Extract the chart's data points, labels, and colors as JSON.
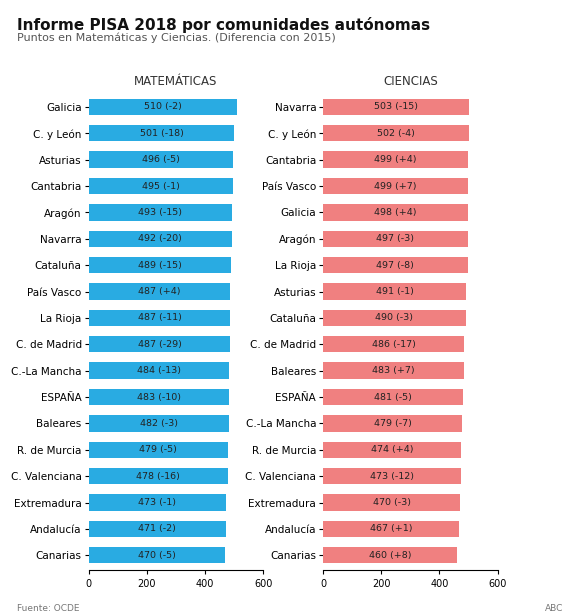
{
  "title": "Informe PISA 2018 por comunidades autónomas",
  "subtitle": "Puntos en Matemáticas y Ciencias. (Diferencia con 2015)",
  "source": "Fuente: OCDE",
  "watermark": "ABC",
  "math_label": "MATEMÁTICAS",
  "sci_label": "CIENCIAS",
  "math_data": [
    {
      "region": "Galicia",
      "value": 510,
      "diff": -2
    },
    {
      "region": "C. y León",
      "value": 501,
      "diff": -18
    },
    {
      "region": "Asturias",
      "value": 496,
      "diff": -5
    },
    {
      "region": "Cantabria",
      "value": 495,
      "diff": -1
    },
    {
      "region": "Aragón",
      "value": 493,
      "diff": -15
    },
    {
      "region": "Navarra",
      "value": 492,
      "diff": -20
    },
    {
      "region": "Cataluña",
      "value": 489,
      "diff": -15
    },
    {
      "region": "País Vasco",
      "value": 487,
      "diff": 4
    },
    {
      "region": "La Rioja",
      "value": 487,
      "diff": -11
    },
    {
      "region": "C. de Madrid",
      "value": 487,
      "diff": -29
    },
    {
      "region": "C.-La Mancha",
      "value": 484,
      "diff": -13
    },
    {
      "region": "ESPAÑA",
      "value": 483,
      "diff": -10
    },
    {
      "region": "Baleares",
      "value": 482,
      "diff": -3
    },
    {
      "region": "R. de Murcia",
      "value": 479,
      "diff": -5
    },
    {
      "region": "C. Valenciana",
      "value": 478,
      "diff": -16
    },
    {
      "region": "Extremadura",
      "value": 473,
      "diff": -1
    },
    {
      "region": "Andalucía",
      "value": 471,
      "diff": -2
    },
    {
      "region": "Canarias",
      "value": 470,
      "diff": -5
    }
  ],
  "sci_data": [
    {
      "region": "Navarra",
      "value": 503,
      "diff": -15
    },
    {
      "region": "C. y León",
      "value": 502,
      "diff": -4
    },
    {
      "region": "Cantabria",
      "value": 499,
      "diff": 4
    },
    {
      "region": "País Vasco",
      "value": 499,
      "diff": 7
    },
    {
      "region": "Galicia",
      "value": 498,
      "diff": 4
    },
    {
      "region": "Aragón",
      "value": 497,
      "diff": -3
    },
    {
      "region": "La Rioja",
      "value": 497,
      "diff": -8
    },
    {
      "region": "Asturias",
      "value": 491,
      "diff": -1
    },
    {
      "region": "Cataluña",
      "value": 490,
      "diff": -3
    },
    {
      "region": "C. de Madrid",
      "value": 486,
      "diff": -17
    },
    {
      "region": "Baleares",
      "value": 483,
      "diff": 7
    },
    {
      "region": "ESPAÑA",
      "value": 481,
      "diff": -5
    },
    {
      "region": "C.-La Mancha",
      "value": 479,
      "diff": -7
    },
    {
      "region": "R. de Murcia",
      "value": 474,
      "diff": 4
    },
    {
      "region": "C. Valenciana",
      "value": 473,
      "diff": -12
    },
    {
      "region": "Extremadura",
      "value": 470,
      "diff": -3
    },
    {
      "region": "Andalucía",
      "value": 467,
      "diff": 1
    },
    {
      "region": "Canarias",
      "value": 460,
      "diff": 8
    }
  ],
  "math_color": "#29ABE2",
  "sci_color": "#F08080",
  "bar_height": 0.62,
  "xlim": [
    0,
    600
  ],
  "xticks": [
    0,
    200,
    400,
    600
  ],
  "background_color": "#FFFFFF",
  "title_fontsize": 11,
  "subtitle_fontsize": 8,
  "label_fontsize": 7.5,
  "axis_title_fontsize": 8.5,
  "bar_label_fontsize": 6.8,
  "tick_fontsize": 7,
  "text_color_dark": "#333333",
  "label_text_color": "#222222"
}
